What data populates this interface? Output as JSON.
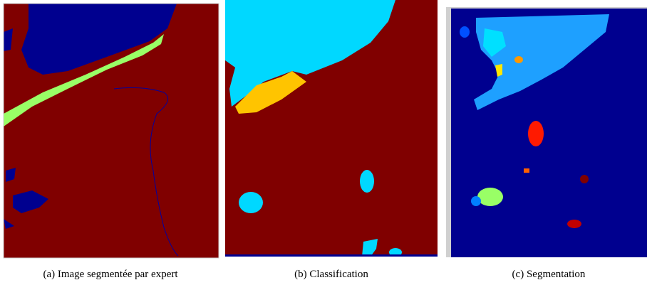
{
  "panels": [
    {
      "caption": "(a)  Image segmentée par expert"
    },
    {
      "caption": "(b)  Classification"
    },
    {
      "caption": "(c)  Segmentation"
    }
  ]
}
